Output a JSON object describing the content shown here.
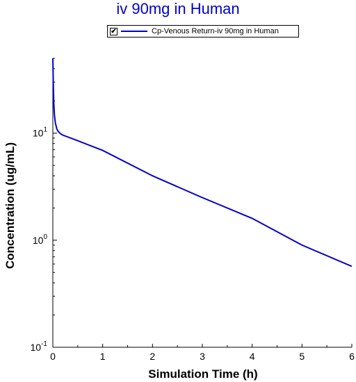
{
  "colors": {
    "accent": "#0000cc",
    "axis": "#000000"
  },
  "chart_data": {
    "type": "line",
    "title": "iv 90mg in Human",
    "xlabel": "Simulation Time (h)",
    "ylabel": "Concentration (ug/mL)",
    "xlim": [
      0,
      6
    ],
    "ylim": [
      0.1,
      50
    ],
    "yscale": "log",
    "grid": false,
    "legend_position": "top",
    "x_ticks": [
      "0",
      "1",
      "2",
      "3",
      "4",
      "5",
      "6"
    ],
    "y_ticks": [
      {
        "base": "10",
        "exp": "-1",
        "value": 0.1
      },
      {
        "base": "10",
        "exp": "0",
        "value": 1
      },
      {
        "base": "10",
        "exp": "1",
        "value": 10
      }
    ],
    "series": [
      {
        "name": "Cp-Venous Return-iv 90mg in Human",
        "color": "#0000cc",
        "x": [
          0.0,
          0.01,
          0.02,
          0.03,
          0.05,
          0.08,
          0.1,
          0.15,
          0.2,
          0.5,
          1,
          2,
          3,
          4,
          5,
          6
        ],
        "y": [
          50,
          28,
          19,
          15,
          12.5,
          11,
          10.5,
          9.9,
          9.6,
          8.5,
          6.9,
          4.0,
          2.5,
          1.6,
          0.9,
          0.57
        ]
      }
    ]
  },
  "legend": {
    "checked": "✔"
  }
}
